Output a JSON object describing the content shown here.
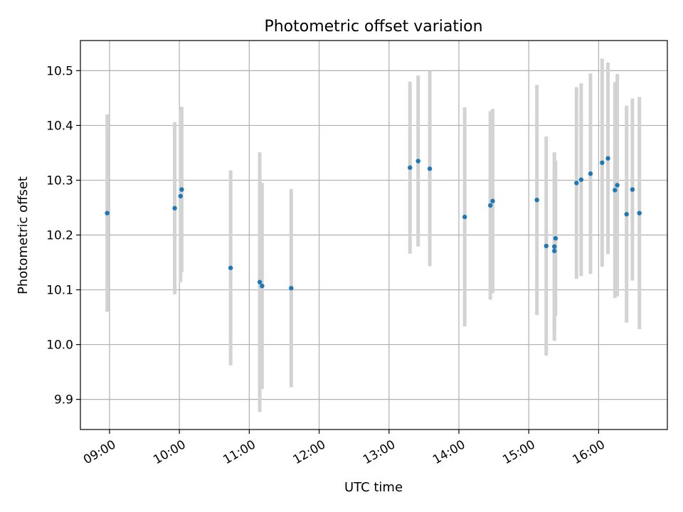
{
  "chart_data": {
    "type": "scatter",
    "title": "Photometric offset variation",
    "xlabel": "UTC time",
    "ylabel": "Photometric offset",
    "xlim": [
      "08:35",
      "16:59"
    ],
    "ylim": [
      9.845,
      10.555
    ],
    "grid": true,
    "x_ticks": [
      "09:00",
      "10:00",
      "11:00",
      "12:00",
      "13:00",
      "14:00",
      "15:00",
      "16:00"
    ],
    "y_ticks": [
      "9.9",
      "10.0",
      "10.1",
      "10.2",
      "10.3",
      "10.4",
      "10.5"
    ],
    "colors": {
      "marker": "#1f77b4",
      "errorbar": "#d3d3d3",
      "grid": "#b0b0b0"
    },
    "points": [
      {
        "t": "08:58",
        "y": 10.24,
        "err": 0.18
      },
      {
        "t": "09:56",
        "y": 10.249,
        "err": 0.157
      },
      {
        "t": "10:01",
        "y": 10.271,
        "err": 0.157
      },
      {
        "t": "10:02",
        "y": 10.283,
        "err": 0.151
      },
      {
        "t": "10:44",
        "y": 10.14,
        "err": 0.178
      },
      {
        "t": "11:09",
        "y": 10.114,
        "err": 0.237
      },
      {
        "t": "11:11",
        "y": 10.107,
        "err": 0.188
      },
      {
        "t": "11:36",
        "y": 10.103,
        "err": 0.181
      },
      {
        "t": "13:18",
        "y": 10.323,
        "err": 0.157
      },
      {
        "t": "13:25",
        "y": 10.335,
        "err": 0.156
      },
      {
        "t": "13:35",
        "y": 10.321,
        "err": 0.178
      },
      {
        "t": "14:05",
        "y": 10.233,
        "err": 0.2
      },
      {
        "t": "14:27",
        "y": 10.254,
        "err": 0.172
      },
      {
        "t": "14:29",
        "y": 10.262,
        "err": 0.168
      },
      {
        "t": "15:07",
        "y": 10.264,
        "err": 0.21
      },
      {
        "t": "15:15",
        "y": 10.18,
        "err": 0.2
      },
      {
        "t": "15:22",
        "y": 10.179,
        "err": 0.172
      },
      {
        "t": "15:22",
        "y": 10.171,
        "err": 0.15
      },
      {
        "t": "15:23",
        "y": 10.194,
        "err": 0.142
      },
      {
        "t": "15:41",
        "y": 10.295,
        "err": 0.175
      },
      {
        "t": "15:45",
        "y": 10.301,
        "err": 0.176
      },
      {
        "t": "15:53",
        "y": 10.312,
        "err": 0.183
      },
      {
        "t": "16:03",
        "y": 10.332,
        "err": 0.19
      },
      {
        "t": "16:08",
        "y": 10.34,
        "err": 0.175
      },
      {
        "t": "16:14",
        "y": 10.282,
        "err": 0.197
      },
      {
        "t": "16:16",
        "y": 10.291,
        "err": 0.203
      },
      {
        "t": "16:24",
        "y": 10.238,
        "err": 0.198
      },
      {
        "t": "16:29",
        "y": 10.283,
        "err": 0.166
      },
      {
        "t": "16:35",
        "y": 10.24,
        "err": 0.212
      }
    ]
  }
}
